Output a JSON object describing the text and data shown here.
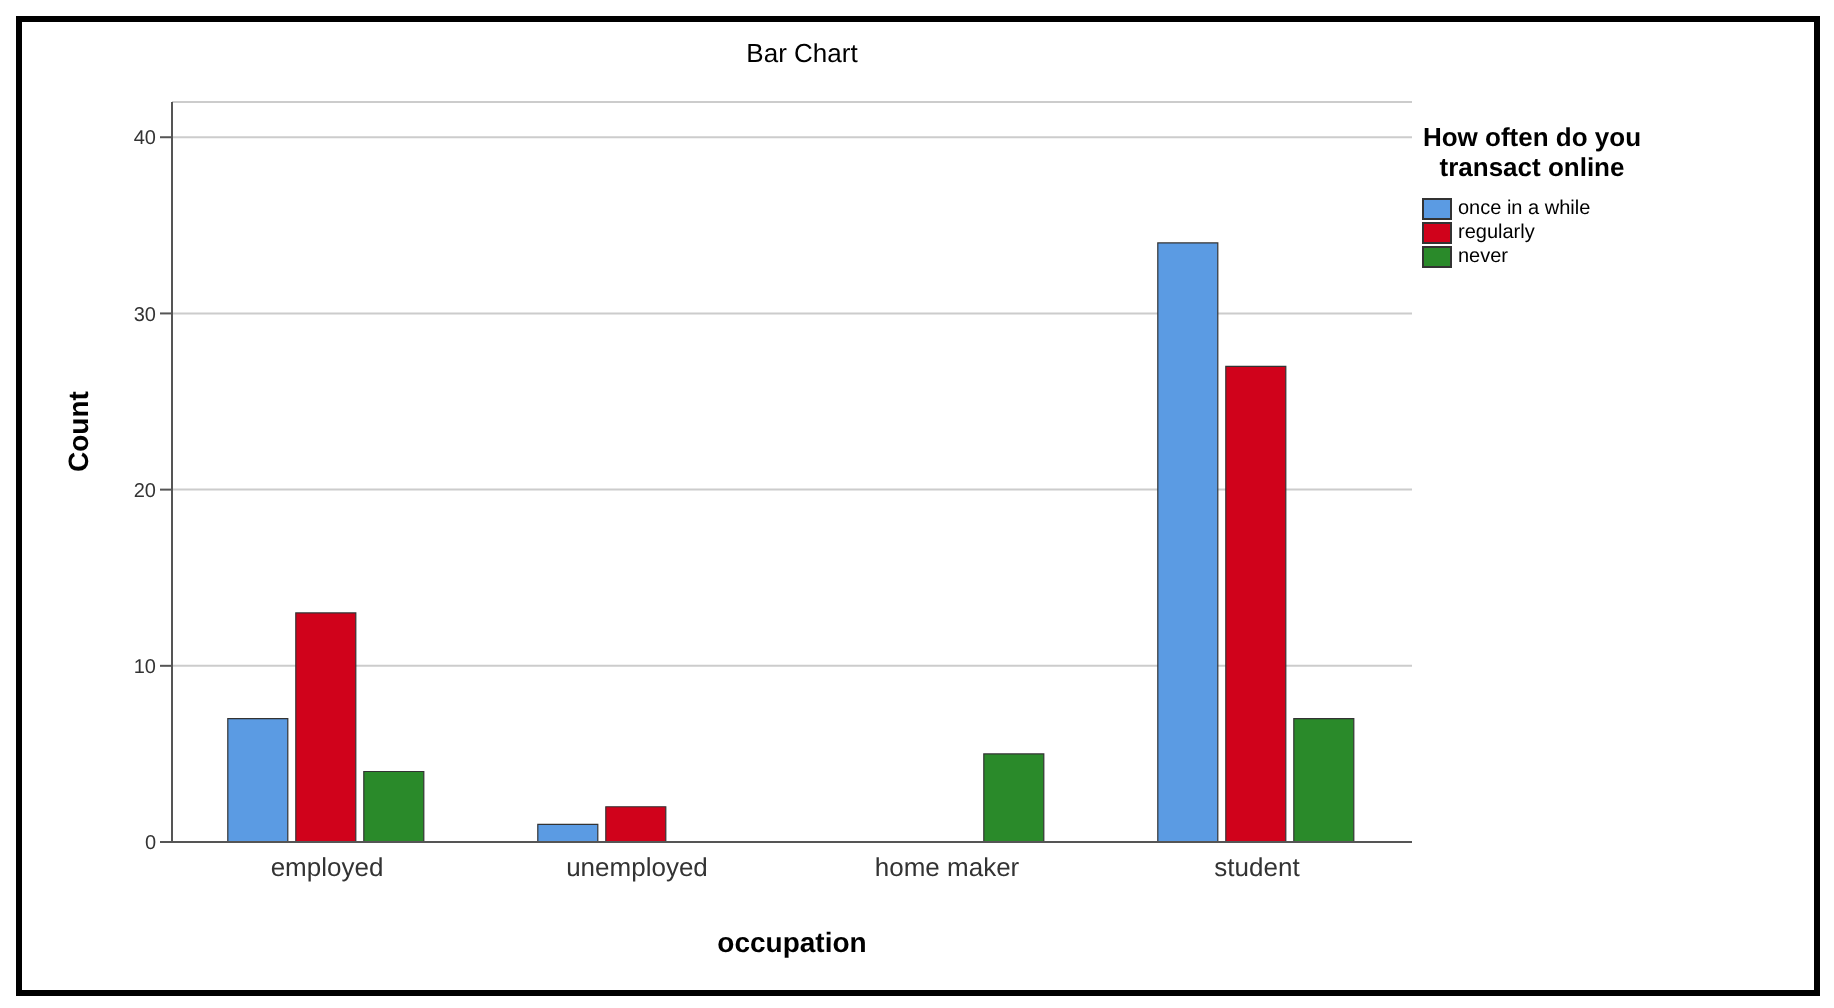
{
  "chart_data": {
    "type": "bar",
    "title": "Bar Chart",
    "xlabel": "occupation",
    "ylabel": "Count",
    "legend_title": "How often do you transact online",
    "categories": [
      "employed",
      "unemployed",
      "home maker",
      "student"
    ],
    "series": [
      {
        "name": "once in a while",
        "color": "#5b9be3",
        "values": [
          7,
          1,
          0,
          34
        ]
      },
      {
        "name": "regularly",
        "color": "#d0021b",
        "values": [
          13,
          2,
          0,
          27
        ]
      },
      {
        "name": "never",
        "color": "#2a8a2a",
        "values": [
          4,
          0,
          5,
          7
        ]
      }
    ],
    "ylim": [
      0,
      42
    ],
    "yticks": [
      0,
      10,
      20,
      30,
      40
    ],
    "grid": "y",
    "legend": "top right"
  }
}
